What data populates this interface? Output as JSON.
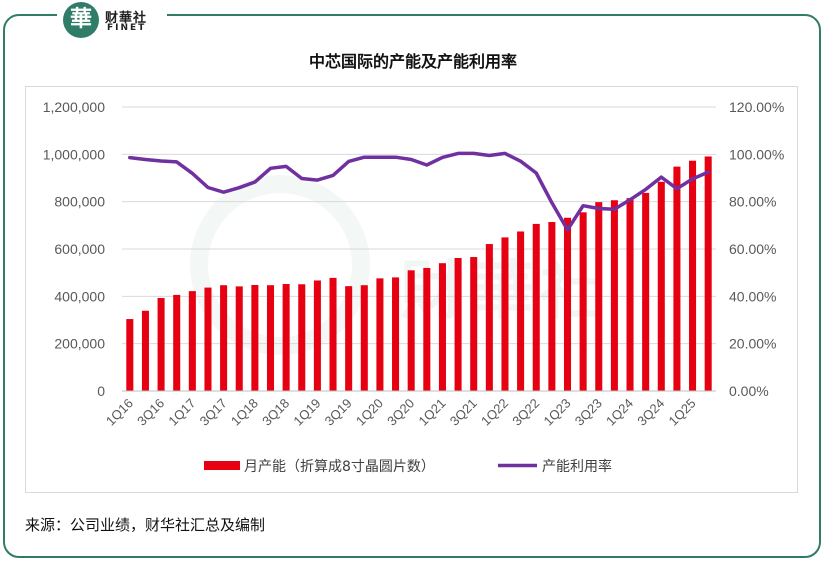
{
  "logo": {
    "cn": "财華社",
    "en": "FINET",
    "seal": "華"
  },
  "watermark": {
    "text": "財華社"
  },
  "source_note": "来源：公司业绩，财华社汇总及编制",
  "chart_data": {
    "type": "bar",
    "title": "中芯国际的产能及产能利用率",
    "categories": [
      "1Q16",
      "2Q16",
      "3Q16",
      "4Q16",
      "1Q17",
      "2Q17",
      "3Q17",
      "4Q17",
      "1Q18",
      "2Q18",
      "3Q18",
      "4Q18",
      "1Q19",
      "2Q19",
      "3Q19",
      "4Q19",
      "1Q20",
      "2Q20",
      "3Q20",
      "4Q20",
      "1Q21",
      "2Q21",
      "3Q21",
      "4Q21",
      "1Q22",
      "2Q22",
      "3Q22",
      "4Q22",
      "1Q23",
      "2Q23",
      "3Q23",
      "4Q23",
      "1Q24",
      "2Q24",
      "3Q24",
      "4Q24",
      "1Q25",
      "2Q25"
    ],
    "x_tick_labels": [
      "1Q16",
      "3Q16",
      "1Q17",
      "3Q17",
      "1Q18",
      "3Q18",
      "1Q19",
      "3Q19",
      "1Q20",
      "3Q20",
      "1Q21",
      "3Q21",
      "1Q22",
      "3Q22",
      "1Q23",
      "3Q23",
      "1Q24",
      "3Q24",
      "1Q25"
    ],
    "series": [
      {
        "name": "月产能（折算成8寸晶圆片数）",
        "type": "bar",
        "axis": "left",
        "color": "#e60012",
        "values": [
          304000,
          339000,
          393000,
          406000,
          422000,
          437000,
          447000,
          442000,
          448000,
          447000,
          452000,
          451000,
          467000,
          478000,
          443000,
          447000,
          476000,
          480000,
          510000,
          520000,
          540000,
          562000,
          566000,
          621000,
          649000,
          674000,
          706000,
          714000,
          732000,
          755000,
          798000,
          806000,
          815000,
          837000,
          884000,
          948000,
          973000,
          991000
        ]
      },
      {
        "name": "产能利用率",
        "type": "line",
        "axis": "right",
        "color": "#7030a0",
        "values": [
          98.6,
          97.8,
          97.2,
          96.8,
          92.0,
          86.0,
          84.0,
          85.9,
          88.3,
          94.1,
          94.9,
          89.8,
          89.1,
          91.1,
          97.0,
          98.8,
          98.8,
          98.8,
          97.8,
          95.5,
          98.7,
          100.4,
          100.4,
          99.5,
          100.4,
          97.1,
          92.1,
          79.5,
          68.1,
          78.3,
          77.1,
          76.8,
          80.8,
          85.2,
          90.4,
          85.5,
          89.6,
          92.5
        ]
      }
    ],
    "y_left": {
      "min": 0,
      "max": 1200000,
      "ticks": [
        "0",
        "200,000",
        "400,000",
        "600,000",
        "800,000",
        "1,000,000",
        "1,200,000"
      ]
    },
    "y_right": {
      "min": 0,
      "max": 120,
      "ticks": [
        "0.00%",
        "20.00%",
        "40.00%",
        "60.00%",
        "80.00%",
        "100.00%",
        "120.00%"
      ]
    },
    "grid": true,
    "legend": "bottom"
  }
}
